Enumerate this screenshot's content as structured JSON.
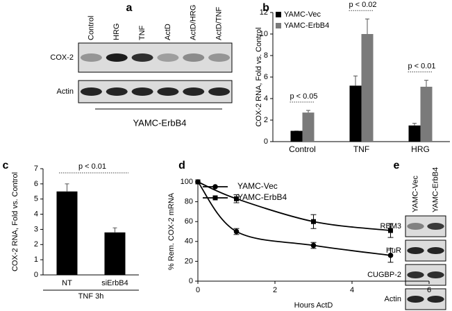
{
  "panel_labels": [
    "a",
    "b",
    "c",
    "d",
    "e"
  ],
  "blot_a": {
    "lanes": [
      "Control",
      "HRG",
      "TNF",
      "ActD",
      "ActD/HRG",
      "ActD/TNF"
    ],
    "rows": [
      "COX-2",
      "Actin"
    ],
    "group_label": "YAMC-ErbB4"
  },
  "blot_e": {
    "lanes": [
      "YAMC-Vec",
      "YAMC-ErbB4"
    ],
    "rows": [
      "RBM3",
      "HuR",
      "CUGBP-2",
      "Actin"
    ]
  },
  "chart_data": [
    {
      "type": "bar",
      "ylabel": "COX-2 RNA, Fold vs. Control",
      "categories": [
        "Control",
        "TNF",
        "HRG"
      ],
      "series": [
        {
          "name": "YAMC-Vec",
          "color": "#000000",
          "values": [
            1,
            5.2,
            1.5
          ],
          "errors": [
            0,
            0.9,
            0.2
          ]
        },
        {
          "name": "YAMC-ErbB4",
          "color": "#7a7a7a",
          "values": [
            2.7,
            10,
            5.1
          ],
          "errors": [
            0.2,
            1.4,
            0.6
          ]
        }
      ],
      "annotations": [
        "p < 0.05",
        "p < 0.02",
        "p < 0.01"
      ],
      "ylim": [
        0,
        12
      ],
      "yticks": [
        0,
        2,
        4,
        6,
        8,
        10,
        12
      ],
      "legend": "upper left"
    },
    {
      "type": "bar",
      "ylabel": "COX-2 RNA, Fold vs. Control",
      "categories": [
        "NT",
        "siErbB4"
      ],
      "series": [
        {
          "color": "#000000",
          "values": [
            5.5,
            2.8
          ],
          "errors": [
            0.5,
            0.3
          ]
        }
      ],
      "annotations": [
        "p < 0.01"
      ],
      "group_label": "TNF 3h",
      "ylim": [
        0,
        7
      ],
      "yticks": [
        0,
        1,
        2,
        3,
        4,
        5,
        6,
        7
      ]
    },
    {
      "type": "line",
      "xlabel": "Hours ActD",
      "ylabel": "% Rem. COX-2 mRNA",
      "x": [
        0,
        1,
        3,
        5
      ],
      "series": [
        {
          "name": "YAMC-Vec",
          "color": "#000000",
          "marker": "circle",
          "values": [
            100,
            50,
            36,
            26
          ],
          "errors": [
            0,
            3,
            3,
            7
          ]
        },
        {
          "name": "YAMC-ErbB4",
          "color": "#000000",
          "marker": "square",
          "values": [
            100,
            83,
            60,
            51
          ],
          "errors": [
            0,
            4,
            7,
            7
          ]
        }
      ],
      "xlim": [
        0,
        6
      ],
      "xticks": [
        0,
        2,
        4,
        6
      ],
      "ylim": [
        0,
        100
      ],
      "yticks": [
        0,
        20,
        40,
        60,
        80,
        100
      ],
      "legend": "upper right"
    }
  ]
}
